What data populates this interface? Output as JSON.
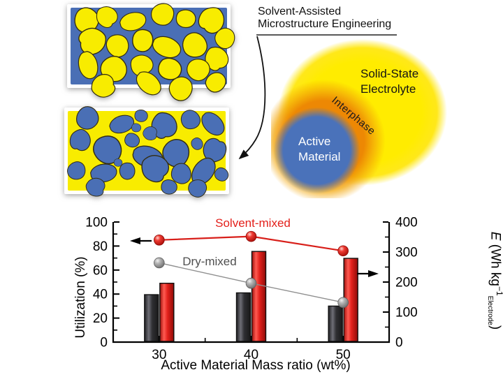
{
  "annotation": {
    "line1": "Solvent-Assisted",
    "line2": "Microstructure Engineering"
  },
  "particle_diagram": {
    "electrolyte_label_line1": "Solid-State",
    "electrolyte_label_line2": "Electrolyte",
    "interphase_label": "Interphase",
    "active_label_line1": "Active",
    "active_label_line2": "Material"
  },
  "colors": {
    "yellow": "#f8ec00",
    "blue": "#4a6fb5",
    "orange": "#ec8304",
    "red": "#e3201b",
    "dark_bar": "#3a3a3e",
    "gray_marker": "#9b9b9b"
  },
  "chart_data": {
    "type": "bar",
    "subtype": "grouped bars + marker lines, dual axis",
    "categories": [
      "30",
      "40",
      "50"
    ],
    "xlabel": "Active Material Mass ratio (wt%)",
    "left_axis": {
      "label": "Utilization (%)",
      "lim": [
        0,
        100
      ],
      "major_ticks": [
        0,
        20,
        40,
        60,
        80,
        100
      ],
      "minor_step": 10
    },
    "right_axis": {
      "label_parts": {
        "symbol": "E",
        "unit_pre": " (Wh kg",
        "sup": "−1",
        "sub": "Electrode",
        "close": ")"
      },
      "lim": [
        0,
        400
      ],
      "major_ticks": [
        0,
        100,
        200,
        300,
        400
      ],
      "minor_step": 50
    },
    "bar_series": [
      {
        "name": "Dry-mixed",
        "axis": "right",
        "color": "#3a3a3e",
        "values": [
          158,
          164,
          120
        ]
      },
      {
        "name": "Solvent-mixed",
        "axis": "right",
        "color": "#e3201b",
        "values": [
          196,
          302,
          279
        ]
      }
    ],
    "line_series": [
      {
        "name": "Solvent-mixed",
        "axis": "left",
        "color": "#e3201b",
        "values": [
          85,
          88,
          76
        ]
      },
      {
        "name": "Dry-mixed",
        "axis": "left",
        "color": "#9b9b9b",
        "values": [
          66,
          49,
          33
        ]
      }
    ],
    "series_labels": [
      {
        "text": "Solvent-mixed",
        "color": "#e3201b"
      },
      {
        "text": "Dry-mixed",
        "color": "#4f4f4f"
      }
    ],
    "grid": false,
    "legend_position": "inline-annotations"
  }
}
